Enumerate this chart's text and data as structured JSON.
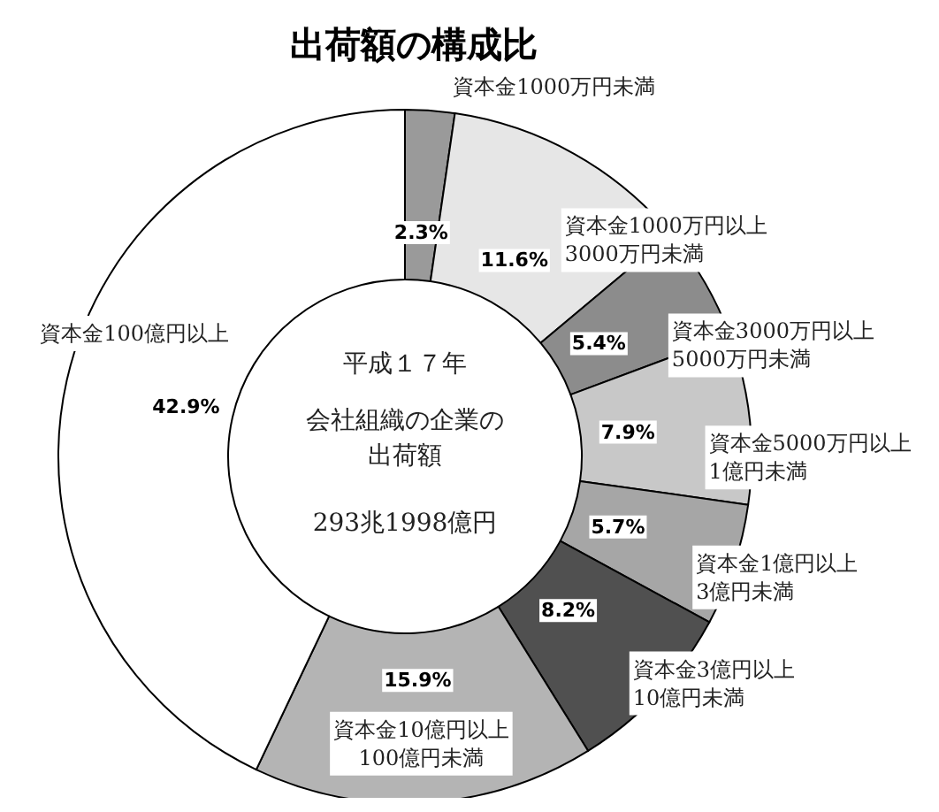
{
  "chart_data": {
    "type": "donut",
    "title": "出荷額の構成比",
    "categories": [
      "資本金1000万円未満",
      "資本金1000万円以上\n3000万円未満",
      "資本金3000万円以上\n5000万円未満",
      "資本金5000万円以上\n1億円未満",
      "資本金1億円以上\n3億円未満",
      "資本金3億円以上\n10億円未満",
      "資本金10億円以上\n100億円未満",
      "資本金100億円以上"
    ],
    "values": [
      2.3,
      11.6,
      5.4,
      7.9,
      5.7,
      8.2,
      15.9,
      42.9
    ],
    "value_labels": [
      "2.3%",
      "11.6%",
      "5.4%",
      "7.9%",
      "5.7%",
      "8.2%",
      "15.9%",
      "42.9%"
    ],
    "colors": [
      "#9a9a9a",
      "#e6e6e6",
      "#8c8c8c",
      "#c8c8c8",
      "#a6a6a6",
      "#505050",
      "#b4b4b4",
      "#ffffff"
    ],
    "annotations": [
      "平成１７年",
      "会社組織の企業の出荷額",
      "293兆1998億円"
    ],
    "legend": false
  }
}
